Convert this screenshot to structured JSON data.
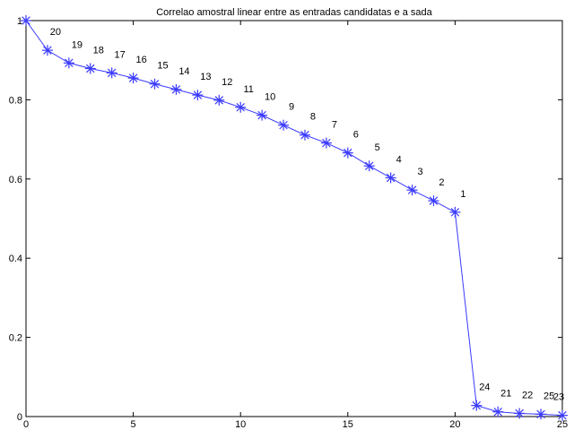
{
  "chart_data": {
    "type": "line",
    "title": "Correlao amostral linear entre as entradas candidatas e a sada",
    "xlabel": "",
    "ylabel": "",
    "xlim": [
      0,
      25
    ],
    "ylim": [
      0,
      1
    ],
    "xticks": [
      0,
      5,
      10,
      15,
      20,
      25
    ],
    "yticks": [
      0,
      0.2,
      0.4,
      0.6,
      0.8,
      1
    ],
    "xtick_labels": [
      "0",
      "5",
      "10",
      "15",
      "20",
      "25"
    ],
    "ytick_labels": [
      "0",
      "0.2",
      "0.4",
      "0.6",
      "0.8",
      "1"
    ],
    "grid": false,
    "marker": "asterisk",
    "color": "#3a3aff",
    "series": [
      {
        "x": [
          0,
          1,
          2,
          3,
          4,
          5,
          6,
          7,
          8,
          9,
          10,
          11,
          12,
          13,
          14,
          15,
          16,
          17,
          18,
          19,
          20,
          21,
          22,
          23,
          24,
          25
        ],
        "values": [
          1.0,
          0.925,
          0.893,
          0.879,
          0.868,
          0.855,
          0.84,
          0.826,
          0.812,
          0.799,
          0.781,
          0.761,
          0.736,
          0.711,
          0.691,
          0.666,
          0.633,
          0.603,
          0.572,
          0.545,
          0.516,
          0.028,
          0.012,
          0.008,
          0.006,
          0.003
        ]
      }
    ],
    "point_labels": [
      "",
      "20",
      "19",
      "18",
      "17",
      "16",
      "15",
      "14",
      "13",
      "12",
      "11",
      "10",
      "9",
      "8",
      "7",
      "6",
      "5",
      "4",
      "3",
      "2",
      "1",
      "24",
      "21",
      "22",
      "25",
      "23"
    ]
  }
}
